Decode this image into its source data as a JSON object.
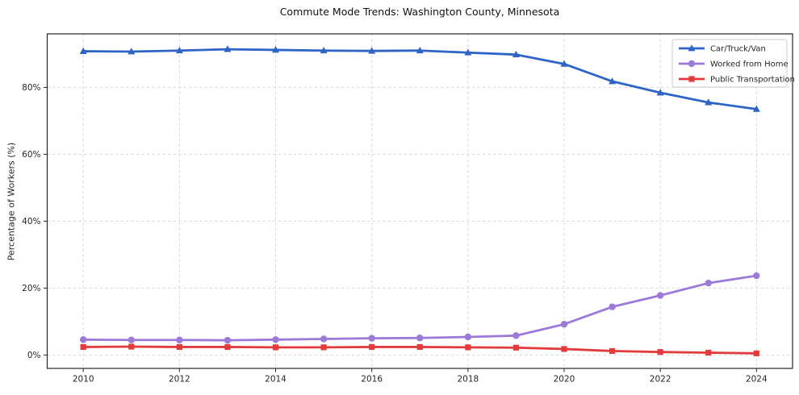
{
  "chart_data": {
    "type": "line",
    "title": "Commute Mode Trends: Washington County, Minnesota",
    "xlabel": "",
    "ylabel": "Percentage of Workers (%)",
    "x": [
      2010,
      2011,
      2012,
      2013,
      2014,
      2015,
      2016,
      2017,
      2018,
      2019,
      2020,
      2021,
      2022,
      2023,
      2024
    ],
    "series": [
      {
        "name": "Car/Truck/Van",
        "color": "#2d64c5",
        "marker": "triangle",
        "values": [
          90.8,
          90.7,
          91.0,
          91.4,
          91.2,
          91.0,
          90.9,
          91.0,
          90.4,
          89.8,
          87.0,
          81.8,
          78.4,
          75.5,
          73.5
        ]
      },
      {
        "name": "Worked from Home",
        "color": "#9c7ad8",
        "marker": "circle",
        "values": [
          4.6,
          4.5,
          4.5,
          4.4,
          4.6,
          4.8,
          5.0,
          5.1,
          5.4,
          5.8,
          9.2,
          14.4,
          17.8,
          21.5,
          23.7
        ]
      },
      {
        "name": "Public Transportation",
        "color": "#e23b3b",
        "marker": "square",
        "values": [
          2.4,
          2.5,
          2.4,
          2.4,
          2.3,
          2.3,
          2.4,
          2.4,
          2.3,
          2.2,
          1.8,
          1.2,
          0.9,
          0.7,
          0.5
        ]
      }
    ],
    "xlim": [
      2009.25,
      2024.75
    ],
    "ylim": [
      -4,
      96
    ],
    "xticks": [
      2010,
      2012,
      2014,
      2016,
      2018,
      2020,
      2022,
      2024
    ],
    "yticks": [
      0,
      20,
      40,
      60,
      80
    ],
    "ytick_labels": [
      "0%",
      "20%",
      "40%",
      "60%",
      "80%"
    ],
    "xtick_labels": [
      "2010",
      "2012",
      "2014",
      "2016",
      "2018",
      "2020",
      "2022",
      "2024"
    ],
    "grid": true,
    "grid_style": "dashed",
    "grid_color": "#d9d9d9",
    "spine_color": "#262626",
    "legend_position": "upper right"
  }
}
